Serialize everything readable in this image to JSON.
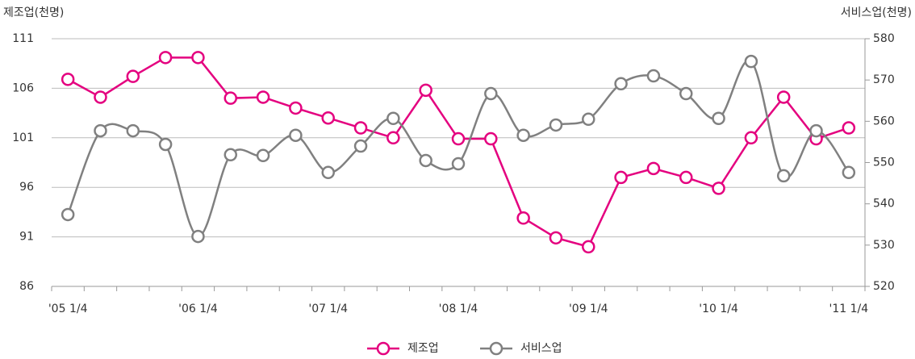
{
  "chart_data": {
    "type": "line",
    "y_label": "제조업(천명)",
    "y2_label": "서비스업(천명)",
    "categories": [
      "'05 1/4",
      null,
      null,
      null,
      "'06 1/4",
      null,
      null,
      null,
      "'07 1/4",
      null,
      null,
      null,
      "'08 1/4",
      null,
      null,
      null,
      "'09 1/4",
      null,
      null,
      null,
      "'10 1/4",
      null,
      null,
      null,
      "'11 1/4"
    ],
    "series": [
      {
        "name": "제조업",
        "color": "#e4007f",
        "axis": "y",
        "smooth": false,
        "values": [
          106.9,
          105.1,
          107.2,
          109.1,
          109.1,
          105.0,
          105.1,
          104.0,
          103.0,
          102.0,
          101.0,
          105.8,
          100.9,
          100.9,
          92.9,
          90.9,
          90.0,
          97.0,
          97.9,
          97.0,
          95.9,
          101.0,
          105.1,
          100.9,
          102.0
        ]
      },
      {
        "name": "서비스업",
        "color": "#808080",
        "axis": "y2",
        "smooth": true,
        "values": [
          537.4,
          557.7,
          557.7,
          554.4,
          532.1,
          551.9,
          551.7,
          556.6,
          547.6,
          554.0,
          560.7,
          550.5,
          549.7,
          566.7,
          556.6,
          559.1,
          560.5,
          569.1,
          571.0,
          566.7,
          560.7,
          574.5,
          546.8,
          557.7,
          547.6
        ]
      }
    ],
    "ylim": [
      86,
      111
    ],
    "yticks": [
      86,
      91,
      96,
      101,
      106,
      111
    ],
    "y2lim": [
      520,
      580
    ],
    "y2ticks": [
      520,
      530,
      540,
      550,
      560,
      570,
      580
    ],
    "grid": true,
    "legend": "bottom"
  }
}
